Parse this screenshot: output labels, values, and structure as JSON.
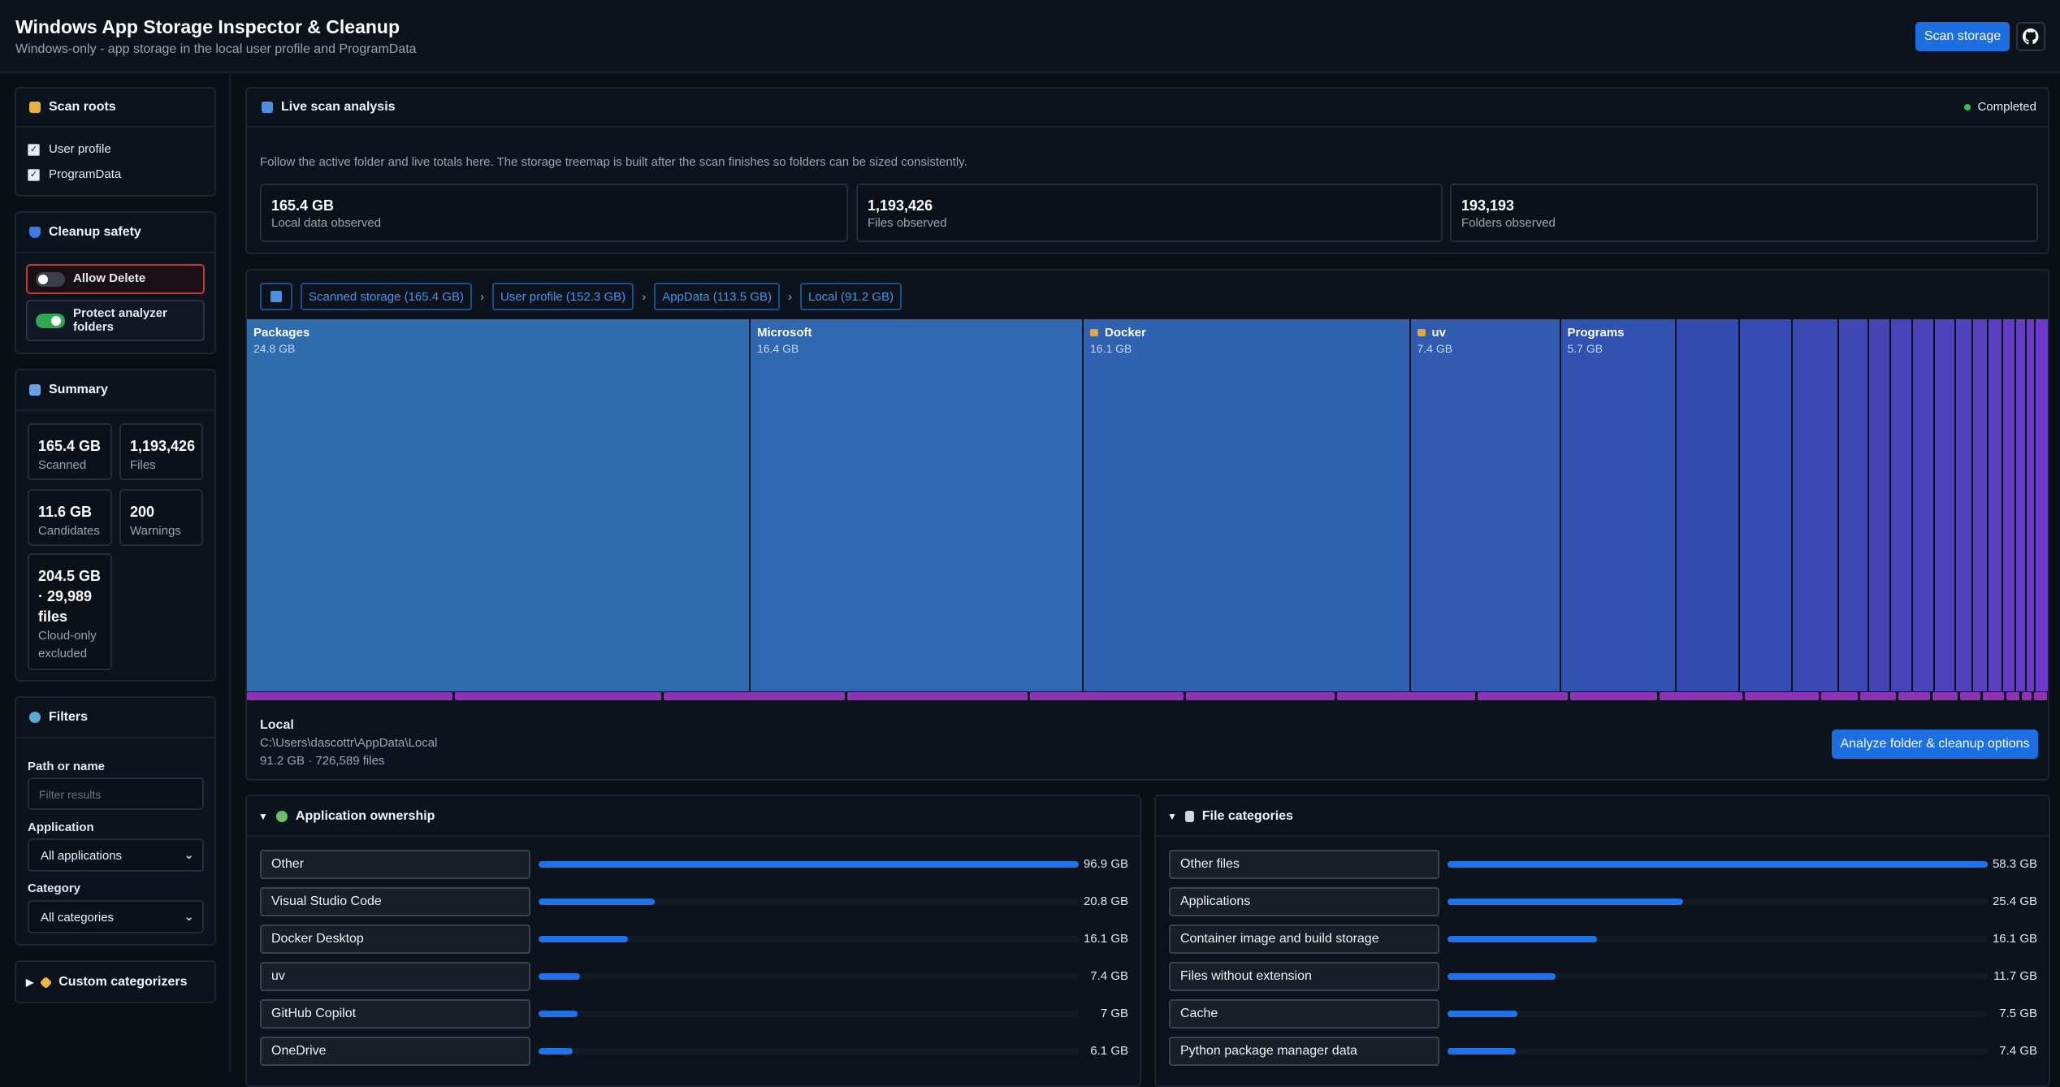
{
  "header": {
    "title": "Windows App Storage Inspector & Cleanup",
    "subtitle": "Windows-only - app storage in the local user profile and ProgramData",
    "scan_button": "Scan storage"
  },
  "sidebar": {
    "scan_roots": {
      "title": "Scan roots",
      "options": [
        {
          "label": "User profile",
          "checked": true
        },
        {
          "label": "ProgramData",
          "checked": true
        }
      ]
    },
    "cleanup": {
      "title": "Cleanup safety",
      "toggles": [
        {
          "label": "Allow Delete",
          "on": false
        },
        {
          "label": "Protect analyzer folders",
          "on": true
        }
      ]
    },
    "summary": {
      "title": "Summary",
      "cards": [
        {
          "value": "165.4 GB",
          "label": "Scanned"
        },
        {
          "value": "1,193,426",
          "label": "Files"
        },
        {
          "value": "11.6 GB",
          "label": "Candidates"
        },
        {
          "value": "200",
          "label": "Warnings"
        },
        {
          "value": "204.5 GB · 29,989 files",
          "label": "Cloud-only excluded"
        }
      ]
    },
    "filters": {
      "title": "Filters",
      "path_label": "Path or name",
      "path_placeholder": "Filter results",
      "application_label": "Application",
      "application_value": "All applications",
      "category_label": "Category",
      "category_value": "All categories"
    },
    "custom": {
      "title": "Custom categorizers"
    }
  },
  "live": {
    "title": "Live scan analysis",
    "status": "Completed",
    "description": "Follow the active folder and live totals here. The storage treemap is built after the scan finishes so folders can be sized consistently.",
    "stats": [
      {
        "value": "165.4 GB",
        "label": "Local data observed"
      },
      {
        "value": "1,193,426",
        "label": "Files observed"
      },
      {
        "value": "193,193",
        "label": "Folders observed"
      }
    ]
  },
  "treemap": {
    "breadcrumbs": [
      "Scanned storage (165.4 GB)",
      "User profile (152.3 GB)",
      "AppData (113.5 GB)",
      "Local (91.2 GB)"
    ],
    "tiles": [
      {
        "name": "Packages",
        "value": 24.8,
        "label": "24.8 GB",
        "locked": false
      },
      {
        "name": "Microsoft",
        "value": 16.4,
        "label": "16.4 GB",
        "locked": false
      },
      {
        "name": "Docker",
        "value": 16.1,
        "label": "16.1 GB",
        "locked": true
      },
      {
        "name": "uv",
        "value": 7.4,
        "label": "7.4 GB",
        "locked": true
      },
      {
        "name": "Programs",
        "value": 5.7,
        "label": "5.7 GB",
        "locked": false
      }
    ],
    "selected": {
      "name": "Local",
      "path": "C:\\Users\\dascottr\\AppData\\Local",
      "details": "91.2 GB · 726,589 files"
    },
    "action": "Analyze folder & cleanup options"
  },
  "ownership": {
    "title": "Application ownership",
    "items": [
      {
        "name": "Other",
        "value": 96.9,
        "label": "96.9 GB"
      },
      {
        "name": "Visual Studio Code",
        "value": 20.8,
        "label": "20.8 GB"
      },
      {
        "name": "Docker Desktop",
        "value": 16.1,
        "label": "16.1 GB"
      },
      {
        "name": "uv",
        "value": 7.4,
        "label": "7.4 GB"
      },
      {
        "name": "GitHub Copilot",
        "value": 7,
        "label": "7 GB"
      },
      {
        "name": "OneDrive",
        "value": 6.1,
        "label": "6.1 GB"
      }
    ]
  },
  "categories": {
    "title": "File categories",
    "items": [
      {
        "name": "Other files",
        "value": 58.3,
        "label": "58.3 GB"
      },
      {
        "name": "Applications",
        "value": 25.4,
        "label": "25.4 GB"
      },
      {
        "name": "Container image and build storage",
        "value": 16.1,
        "label": "16.1 GB"
      },
      {
        "name": "Files without extension",
        "value": 11.7,
        "label": "11.7 GB"
      },
      {
        "name": "Cache",
        "value": 7.5,
        "label": "7.5 GB"
      },
      {
        "name": "Python package manager data",
        "value": 7.4,
        "label": "7.4 GB"
      }
    ]
  }
}
